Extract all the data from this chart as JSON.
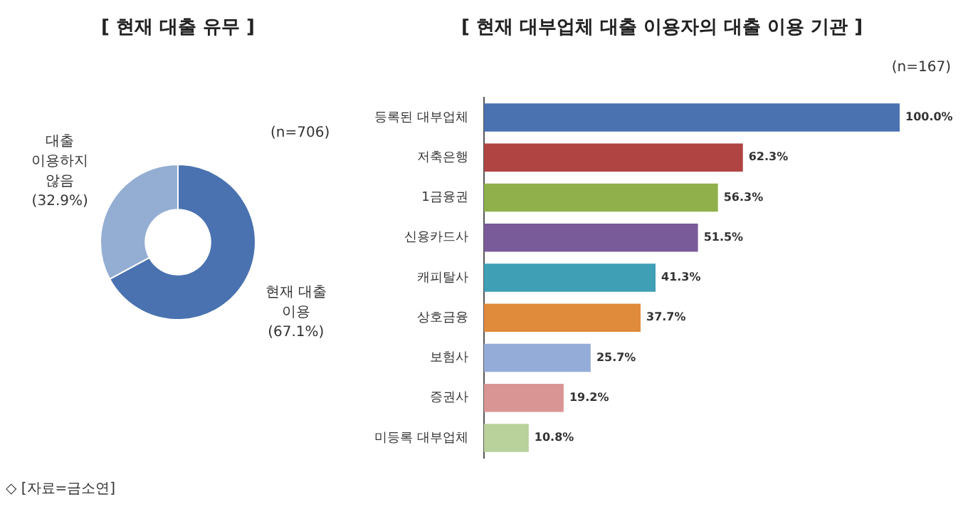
{
  "chart_data": [
    {
      "type": "donut",
      "title": "[ 현재 대출 유무 ]",
      "categories": [
        "현재 대출 이용",
        "대출 이용하지 않음"
      ],
      "values": [
        67.1,
        32.9
      ],
      "value_labels": [
        "(67.1%)",
        "(32.9%)"
      ],
      "colors": [
        "#4a72b0",
        "#94aed3"
      ],
      "annotations": [
        "(n=706)",
        "◇ [자료=금소연]"
      ]
    },
    {
      "type": "bar",
      "orientation": "horizontal",
      "title": "[ 현재 대부업체 대출 이용자의 대출 이용 기관 ]",
      "categories": [
        "등록된 대부업체",
        "저축은행",
        "1금융권",
        "신용카드사",
        "캐피탈사",
        "상호금융",
        "보험사",
        "증권사",
        "미등록 대부업체"
      ],
      "values": [
        100.0,
        62.3,
        56.3,
        51.5,
        41.3,
        37.7,
        25.7,
        19.2,
        10.8
      ],
      "value_labels": [
        "100.0%",
        "62.3%",
        "56.3%",
        "51.5%",
        "41.3%",
        "37.7%",
        "25.7%",
        "19.2%",
        "10.8%"
      ],
      "colors": [
        "#4a72b0",
        "#b04442",
        "#8fb04a",
        "#7a5b9a",
        "#3f9fb5",
        "#e08a3c",
        "#94acd8",
        "#d99594",
        "#b9d19a"
      ],
      "annotations": [
        "(n=167)"
      ]
    }
  ]
}
